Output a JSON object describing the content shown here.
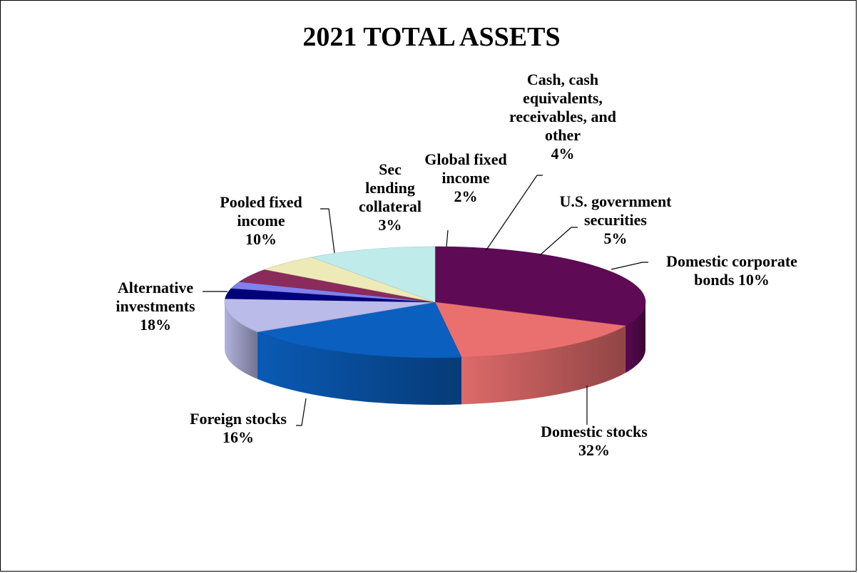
{
  "chart_data": {
    "type": "pie",
    "title": "2021 TOTAL ASSETS",
    "three_d": true,
    "legend": "none",
    "slices": [
      {
        "category": "Domestic stocks",
        "value": 32,
        "value_label": "32%",
        "label_lines": [
          "Domestic stocks",
          "32%"
        ],
        "color": "#5e0a55"
      },
      {
        "category": "Foreign stocks",
        "value": 16,
        "value_label": "16%",
        "label_lines": [
          "Foreign stocks",
          "16%"
        ],
        "color": "#ea7070"
      },
      {
        "category": "Alternative investments",
        "value": 18,
        "value_label": "18%",
        "label_lines": [
          "Alternative",
          "investments",
          "18%"
        ],
        "color": "#0a5fbf"
      },
      {
        "category": "Pooled fixed income",
        "value": 10,
        "value_label": "10%",
        "label_lines": [
          "Pooled fixed",
          "income",
          "10%"
        ],
        "color": "#babbe8"
      },
      {
        "category": "Sec lending collateral",
        "value": 3,
        "value_label": "3%",
        "label_lines": [
          "Sec",
          "lending",
          "collateral",
          "3%"
        ],
        "color": "#00007a"
      },
      {
        "category": "Global fixed income",
        "value": 2,
        "value_label": "2%",
        "label_lines": [
          "Global fixed",
          "income",
          "2%"
        ],
        "color": "#8080ee"
      },
      {
        "category": "Cash, cash equivalents, receivables, and other",
        "value": 4,
        "value_label": "4%",
        "label_lines": [
          "Cash, cash",
          "equivalents,",
          "receivables, and",
          "other",
          "4%"
        ],
        "color": "#8a2b5c"
      },
      {
        "category": "U.S. government securities",
        "value": 5,
        "value_label": "5%",
        "label_lines": [
          "U.S. government",
          "securities",
          "5%"
        ],
        "color": "#eeeab8"
      },
      {
        "category": "Domestic corporate bonds",
        "value": 10,
        "value_label": "10%",
        "label_lines": [
          "Domestic corporate",
          "bonds 10%"
        ],
        "color": "#bfeceb"
      }
    ]
  }
}
